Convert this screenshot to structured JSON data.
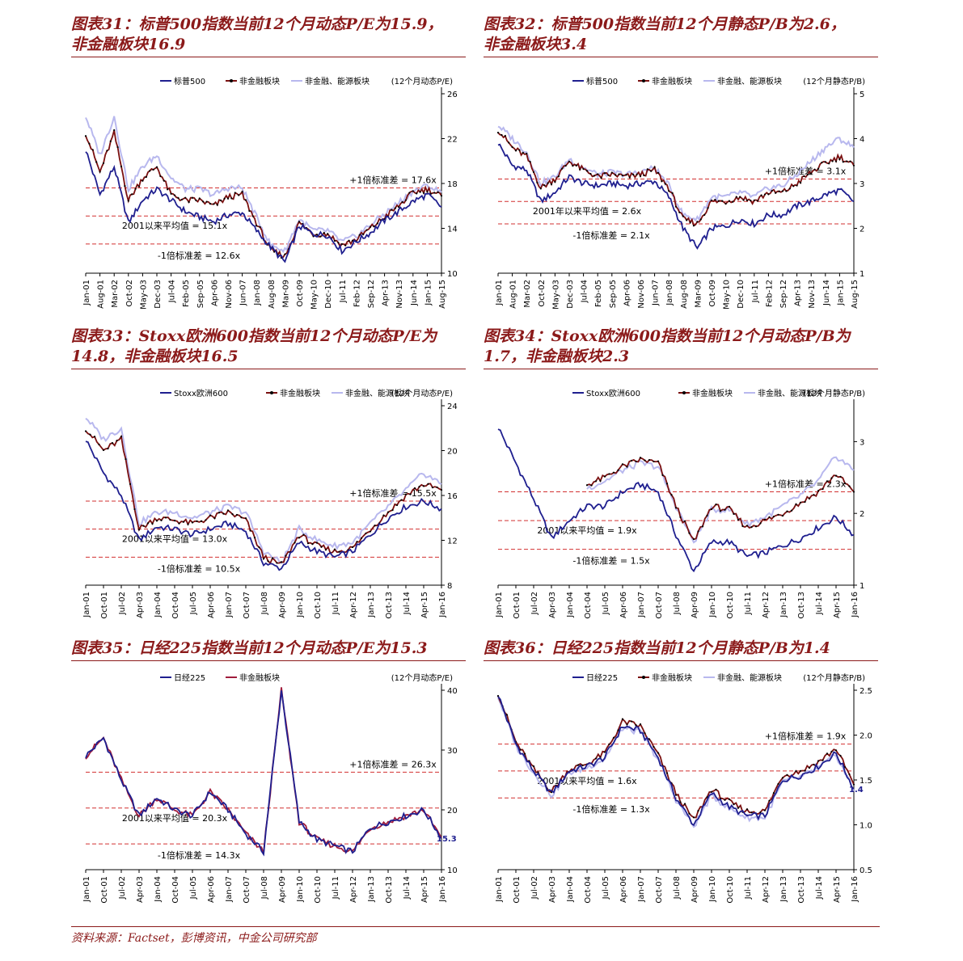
{
  "source": "资料来源：Factset，彭博资讯，中金公司研究部",
  "chart_data": [
    {
      "type": "line",
      "title_line1": "图表31：标普500指数当前12个月动态P/E为15.9，",
      "title_line2": "非金融板块16.9",
      "unit": "(12个月动态P/E)",
      "categories": [
        "Jan-01",
        "Aug-01",
        "Mar-02",
        "Oct-02",
        "May-03",
        "Dec-03",
        "Jul-04",
        "Feb-05",
        "Sep-05",
        "Apr-06",
        "Nov-06",
        "Jun-07",
        "Jan-08",
        "Aug-08",
        "Mar-09",
        "Oct-09",
        "May-10",
        "Dec-10",
        "Jul-11",
        "Feb-12",
        "Sep-12",
        "Apr-13",
        "Nov-13",
        "Jun-14",
        "Jan-15",
        "Aug-15"
      ],
      "ylim": [
        10,
        26
      ],
      "yticks": [
        10,
        14,
        18,
        22,
        26
      ],
      "ytick_labels": [
        "10",
        "14",
        "18",
        "22",
        "26"
      ],
      "series": [
        {
          "name": "标普500",
          "color": "#1f1f8f",
          "values": [
            21,
            17,
            19.5,
            14.5,
            16.5,
            17.5,
            16.5,
            15.5,
            15,
            14.6,
            15.2,
            15.4,
            13.8,
            12.3,
            11,
            14.2,
            13.5,
            13.4,
            12,
            12.8,
            13.6,
            14.7,
            15.5,
            16.4,
            17,
            15.9
          ]
        },
        {
          "name": "非金融板块",
          "color": "#7a1010",
          "marker": true,
          "values": [
            22.5,
            19,
            22.5,
            16.5,
            18.5,
            19.5,
            17,
            16.5,
            16.5,
            16,
            16.8,
            17,
            14.5,
            12,
            11.5,
            14.5,
            13.5,
            13.5,
            12.5,
            13,
            14,
            15,
            16,
            17.2,
            17.5,
            16.9
          ]
        },
        {
          "name": "非金融、能源板块",
          "color": "#b8b8ee",
          "values": [
            24,
            20.5,
            24,
            17.5,
            19.5,
            20.5,
            18.5,
            17.5,
            17.5,
            17,
            17.6,
            17.6,
            15,
            12.5,
            12,
            14.8,
            13.8,
            13.8,
            12.8,
            13.3,
            14.3,
            15.3,
            16.3,
            17.3,
            17.8,
            17.2
          ]
        }
      ],
      "reference_lines": [
        {
          "label": "+1倍标准差 = 17.6x",
          "value": 17.6
        },
        {
          "label": "2001以来平均值 = 15.1x",
          "value": 15.1
        },
        {
          "label": "-1倍标准差 = 12.6x",
          "value": 12.6
        }
      ],
      "end_label": "",
      "legend_position": "top"
    },
    {
      "type": "line",
      "title_line1": "图表32：标普500指数当前12个月静态P/B为2.6，",
      "title_line2": "非金融板块3.4",
      "unit": "(12个月静态P/B)",
      "categories": [
        "Jan-01",
        "Aug-01",
        "Mar-02",
        "Oct-02",
        "May-03",
        "Dec-03",
        "Jul-04",
        "Feb-05",
        "Sep-05",
        "Apr-06",
        "Nov-06",
        "Jun-07",
        "Jan-08",
        "Aug-08",
        "Mar-09",
        "Oct-09",
        "May-10",
        "Dec-10",
        "Jul-11",
        "Feb-12",
        "Sep-12",
        "Apr-13",
        "Nov-13",
        "Jun-14",
        "Jan-15",
        "Aug-15"
      ],
      "ylim": [
        1,
        5
      ],
      "yticks": [
        1,
        2,
        3,
        4,
        5
      ],
      "ytick_labels": [
        "1",
        "2",
        "3",
        "4",
        "5"
      ],
      "series": [
        {
          "name": "标普500",
          "color": "#1f1f8f",
          "values": [
            3.9,
            3.4,
            3.3,
            2.6,
            2.8,
            3.15,
            3.0,
            2.95,
            3.0,
            2.95,
            3.0,
            3.05,
            2.7,
            2.0,
            1.55,
            2.0,
            2.05,
            2.2,
            2.1,
            2.3,
            2.3,
            2.5,
            2.6,
            2.75,
            2.85,
            2.6
          ]
        },
        {
          "name": "非金融板块",
          "color": "#7a1010",
          "marker": true,
          "values": [
            4.2,
            3.8,
            3.6,
            2.9,
            3.1,
            3.5,
            3.3,
            3.15,
            3.2,
            3.15,
            3.2,
            3.3,
            2.9,
            2.2,
            2.1,
            2.6,
            2.6,
            2.7,
            2.6,
            2.8,
            2.8,
            3.0,
            3.25,
            3.45,
            3.6,
            3.4
          ]
        },
        {
          "name": "非金融、能源板块",
          "color": "#b8b8ee",
          "values": [
            4.3,
            4.0,
            3.7,
            3.0,
            3.15,
            3.55,
            3.35,
            3.2,
            3.25,
            3.2,
            3.25,
            3.35,
            2.95,
            2.3,
            2.2,
            2.7,
            2.7,
            2.8,
            2.7,
            2.9,
            2.95,
            3.2,
            3.5,
            3.8,
            4.0,
            3.8
          ]
        }
      ],
      "reference_lines": [
        {
          "label": "+1倍标准差 = 3.1x",
          "value": 3.1
        },
        {
          "label": "2001年以来平均值 = 2.6x",
          "value": 2.6
        },
        {
          "label": "-1倍标准差 = 2.1x",
          "value": 2.1
        }
      ],
      "end_label": "",
      "legend_position": "top"
    },
    {
      "type": "line",
      "title_line1": "图表33：Stoxx欧洲600指数当前12个月动态P/E为",
      "title_line2": "14.8，非金融板块16.5",
      "unit": "(12个月动态P/E)",
      "categories": [
        "Jan-01",
        "Oct-01",
        "Jul-02",
        "Apr-03",
        "Jan-04",
        "Oct-04",
        "Jul-05",
        "Apr-06",
        "Jan-07",
        "Oct-07",
        "Jul-08",
        "Apr-09",
        "Jan-10",
        "Oct-10",
        "Jul-11",
        "Apr-12",
        "Jan-13",
        "Oct-13",
        "Jul-14",
        "Apr-15",
        "Jan-16"
      ],
      "ylim": [
        8,
        24
      ],
      "yticks": [
        8,
        12,
        16,
        20,
        24
      ],
      "ytick_labels": [
        "8",
        "12",
        "16",
        "20",
        "24"
      ],
      "series": [
        {
          "name": "Stoxx欧洲600",
          "color": "#1f1f8f",
          "values": [
            21,
            18,
            16,
            12,
            13.2,
            13,
            12.5,
            13,
            13.5,
            12.8,
            10,
            9.5,
            11.8,
            11,
            10.5,
            11,
            12.5,
            14,
            15,
            15.5,
            14.8
          ]
        },
        {
          "name": "非金融板块",
          "color": "#7a1010",
          "marker": true,
          "values": [
            22,
            20,
            21,
            13,
            14,
            13.8,
            13.5,
            14,
            14.5,
            13.8,
            10.5,
            9.8,
            12.5,
            11.5,
            11,
            11.3,
            13,
            14.5,
            16,
            17,
            16.5
          ]
        },
        {
          "name": "非金融、能源板块",
          "color": "#b8b8ee",
          "values": [
            23,
            21,
            22,
            13.5,
            14.5,
            14.5,
            14,
            14.5,
            15,
            14.5,
            11,
            10,
            13,
            12,
            11.5,
            11.8,
            13.5,
            15,
            16.5,
            18,
            17
          ]
        }
      ],
      "reference_lines": [
        {
          "label": "+1倍标准差 = 15.5x",
          "value": 15.5
        },
        {
          "label": "2001以来平均值 = 13.0x",
          "value": 13.0
        },
        {
          "label": "-1倍标准差 = 10.5x",
          "value": 10.5
        }
      ],
      "end_label": "",
      "legend_position": "top"
    },
    {
      "type": "line",
      "title_line1": "图表34：Stoxx欧洲600指数当前12个月动态P/B为",
      "title_line2": "1.7，非金融板块2.3",
      "unit": "(12个月静态P/B)",
      "categories": [
        "Jan-01",
        "Oct-01",
        "Jul-02",
        "Apr-03",
        "Jan-04",
        "Oct-04",
        "Jul-05",
        "Apr-06",
        "Jan-07",
        "Oct-07",
        "Jul-08",
        "Apr-09",
        "Jan-10",
        "Oct-10",
        "Jul-11",
        "Apr-12",
        "Jan-13",
        "Oct-13",
        "Jul-14",
        "Apr-15",
        "Jan-16"
      ],
      "ylim": [
        1,
        3.5
      ],
      "yticks": [
        1,
        2,
        3
      ],
      "ytick_labels": [
        "1",
        "2",
        "3"
      ],
      "series": [
        {
          "name": "Stoxx欧洲600",
          "color": "#1f1f8f",
          "values": [
            3.2,
            2.7,
            2.2,
            1.65,
            1.9,
            2.1,
            2.1,
            2.3,
            2.4,
            2.3,
            1.7,
            1.2,
            1.6,
            1.6,
            1.4,
            1.45,
            1.55,
            1.65,
            1.8,
            1.95,
            1.7
          ]
        },
        {
          "name": "非金融板块",
          "color": "#7a1010",
          "marker": true,
          "values": [
            null,
            null,
            null,
            null,
            null,
            2.4,
            2.5,
            2.65,
            2.75,
            2.7,
            2.1,
            1.6,
            2.1,
            2.05,
            1.8,
            1.9,
            2.0,
            2.15,
            2.3,
            2.55,
            2.3
          ]
        },
        {
          "name": "非金融、能源板块",
          "color": "#b8b8ee",
          "values": [
            null,
            null,
            null,
            null,
            null,
            2.35,
            2.45,
            2.6,
            2.7,
            2.65,
            2.1,
            1.6,
            2.05,
            2.05,
            1.85,
            1.95,
            2.1,
            2.25,
            2.45,
            2.8,
            2.6
          ]
        }
      ],
      "reference_lines": [
        {
          "label": "+1倍标准差 = 2.3x",
          "value": 2.3
        },
        {
          "label": "2001以来平均值 = 1.9x",
          "value": 1.9
        },
        {
          "label": "-1倍标准差 = 1.5x",
          "value": 1.5
        }
      ],
      "end_label": "",
      "legend_position": "top"
    },
    {
      "type": "line",
      "title_line1": "图表35：日经225指数当前12个月动态P/E为15.3",
      "title_line2": "",
      "unit": "(12个月动态P/E)",
      "categories": [
        "Jan-01",
        "Oct-01",
        "Jul-02",
        "Apr-03",
        "Jan-04",
        "Oct-04",
        "Jul-05",
        "Apr-06",
        "Jan-07",
        "Oct-07",
        "Jul-08",
        "Apr-09",
        "Jan-10",
        "Oct-10",
        "Jul-11",
        "Apr-12",
        "Jan-13",
        "Oct-13",
        "Jul-14",
        "Apr-15",
        "Jan-16"
      ],
      "ylim": [
        10,
        40
      ],
      "yticks": [
        10,
        20,
        30,
        40
      ],
      "ytick_labels": [
        "10",
        "20",
        "30",
        "40"
      ],
      "series": [
        {
          "name": "日经225",
          "color": "#1f1f8f",
          "values": [
            29,
            32,
            25,
            19,
            22,
            20,
            19,
            23,
            20,
            16,
            13,
            40,
            18,
            15,
            14,
            13,
            17,
            18,
            19,
            20,
            15.3
          ]
        },
        {
          "name": "非金融板块",
          "color": "#a01c3c",
          "marker": false,
          "values": [
            29,
            32,
            25,
            19,
            22,
            20,
            19,
            23,
            20,
            16,
            13,
            40,
            18,
            15,
            14,
            13,
            17,
            18,
            19,
            20,
            15.3
          ]
        }
      ],
      "reference_lines": [
        {
          "label": "+1倍标准差 = 26.3x",
          "value": 26.3
        },
        {
          "label": "2001以来平均值 = 20.3x",
          "value": 20.3
        },
        {
          "label": "-1倍标准差 = 14.3x",
          "value": 14.3
        }
      ],
      "end_label": "15.3",
      "legend_position": "top"
    },
    {
      "type": "line",
      "title_line1": "图表36：日经225指数当前12个月静态P/B为1.4",
      "title_line2": "",
      "unit": "(12个月静态P/B)",
      "categories": [
        "Jan-01",
        "Oct-01",
        "Jul-02",
        "Apr-03",
        "Jan-04",
        "Oct-04",
        "Jul-05",
        "Apr-06",
        "Jan-07",
        "Oct-07",
        "Jul-08",
        "Apr-09",
        "Jan-10",
        "Oct-10",
        "Jul-11",
        "Apr-12",
        "Jan-13",
        "Oct-13",
        "Jul-14",
        "Apr-15",
        "Jan-16"
      ],
      "ylim": [
        0.5,
        2.5
      ],
      "yticks": [
        0.5,
        1.0,
        1.5,
        2.0,
        2.5
      ],
      "ytick_labels": [
        "0.5",
        "1.0",
        "1.5",
        "2.0",
        "2.5"
      ],
      "series": [
        {
          "name": "日经225",
          "color": "#1f1f8f",
          "values": [
            2.45,
            1.9,
            1.6,
            1.35,
            1.6,
            1.65,
            1.75,
            2.1,
            2.05,
            1.75,
            1.3,
            1.0,
            1.35,
            1.2,
            1.1,
            1.1,
            1.5,
            1.55,
            1.65,
            1.8,
            1.4
          ]
        },
        {
          "name": "非金融板块",
          "color": "#7a1010",
          "marker": true,
          "values": [
            2.47,
            1.92,
            1.62,
            1.37,
            1.62,
            1.68,
            1.8,
            2.15,
            2.1,
            1.78,
            1.35,
            1.05,
            1.4,
            1.25,
            1.15,
            1.15,
            1.55,
            1.6,
            1.7,
            1.85,
            1.45
          ]
        },
        {
          "name": "非金融、能源板块",
          "color": "#b8b8ee",
          "values": [
            2.43,
            1.88,
            1.58,
            1.33,
            1.58,
            1.64,
            1.74,
            2.08,
            2.03,
            1.73,
            1.28,
            0.98,
            1.33,
            1.18,
            1.08,
            1.08,
            1.48,
            1.53,
            1.63,
            1.78,
            1.38
          ]
        }
      ],
      "reference_lines": [
        {
          "label": "+1倍标准差 = 1.9x",
          "value": 1.9
        },
        {
          "label": "2001以来平均值 = 1.6x",
          "value": 1.6
        },
        {
          "label": "-1倍标准差 = 1.3x",
          "value": 1.3
        }
      ],
      "end_label": "1.4",
      "legend_position": "top"
    }
  ]
}
